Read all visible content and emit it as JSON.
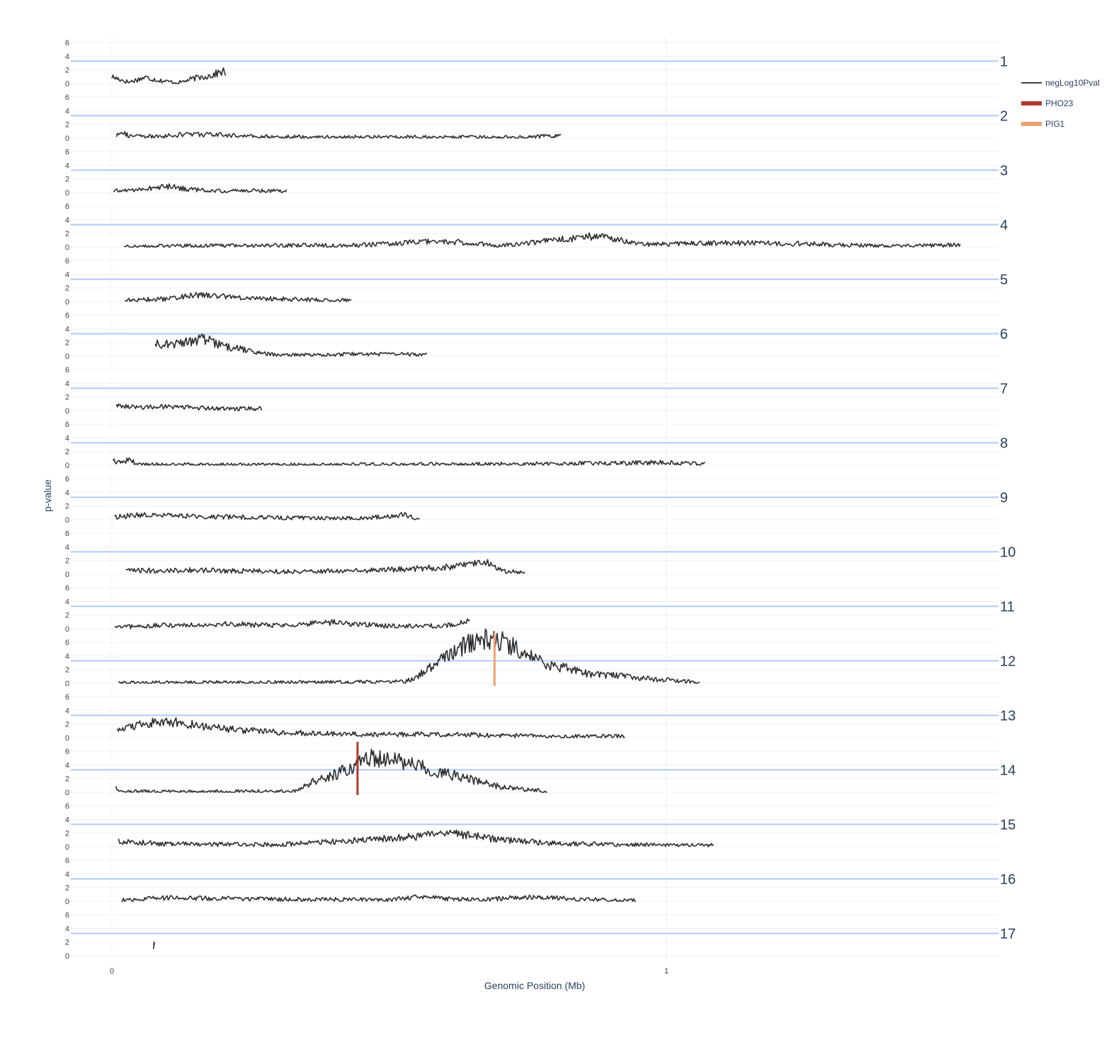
{
  "chart_data": {
    "type": "line",
    "xlabel": "Genomic Position (Mb)",
    "ylabel": "p-value",
    "xlim": [
      -0.075,
      1.6
    ],
    "xticks": [
      "0",
      "1"
    ],
    "ylim": [
      0,
      7
    ],
    "yticks": [
      "0",
      "2",
      "4",
      "6"
    ],
    "threshold": 3.3,
    "threshold_color": "#aecbfa",
    "line_color": "#2b2f33",
    "legend": [
      {
        "name": "negLog10Pval",
        "color": "#3a3f44"
      },
      {
        "name": "PHO23",
        "color": "#b03a2e"
      },
      {
        "name": "PIG1",
        "color": "#f0a070"
      }
    ],
    "legend_position": "top-right",
    "facets": [
      {
        "label": "1",
        "x_start": 0.0,
        "x_end": 0.205,
        "baseline": 0.5,
        "peak": 1.9,
        "points": [
          [
            0.0,
            1.0
          ],
          [
            0.03,
            0.2
          ],
          [
            0.06,
            0.9
          ],
          [
            0.09,
            0.4
          ],
          [
            0.12,
            0.1
          ],
          [
            0.15,
            0.8
          ],
          [
            0.18,
            1.2
          ],
          [
            0.2,
            1.8
          ],
          [
            0.205,
            1.6
          ]
        ]
      },
      {
        "label": "2",
        "x_start": 0.008,
        "x_end": 0.81,
        "baseline": 0.05,
        "peak": 1.3,
        "points": [
          [
            0.008,
            0.3
          ],
          [
            0.015,
            1.2
          ],
          [
            0.03,
            0.3
          ],
          [
            0.08,
            0.2
          ],
          [
            0.14,
            0.6
          ],
          [
            0.22,
            0.4
          ],
          [
            0.26,
            0.2
          ],
          [
            0.7,
            0.1
          ],
          [
            0.8,
            0.3
          ],
          [
            0.81,
            0.2
          ]
        ]
      },
      {
        "label": "3",
        "x_start": 0.003,
        "x_end": 0.315,
        "baseline": 0.1,
        "peak": 1.0,
        "points": [
          [
            0.003,
            0.2
          ],
          [
            0.05,
            0.5
          ],
          [
            0.1,
            0.9
          ],
          [
            0.15,
            0.4
          ],
          [
            0.2,
            0.2
          ],
          [
            0.25,
            0.3
          ],
          [
            0.315,
            0.3
          ]
        ]
      },
      {
        "label": "4",
        "x_start": 0.022,
        "x_end": 1.53,
        "baseline": 0.05,
        "peak": 1.8,
        "points": [
          [
            0.022,
            0.1
          ],
          [
            0.2,
            0.2
          ],
          [
            0.45,
            0.3
          ],
          [
            0.6,
            0.9
          ],
          [
            0.7,
            0.2
          ],
          [
            0.88,
            1.7
          ],
          [
            0.95,
            0.4
          ],
          [
            1.12,
            0.6
          ],
          [
            1.25,
            0.5
          ],
          [
            1.4,
            0.1
          ],
          [
            1.53,
            0.3
          ]
        ]
      },
      {
        "label": "5",
        "x_start": 0.023,
        "x_end": 0.432,
        "baseline": 0.1,
        "peak": 1.1,
        "points": [
          [
            0.023,
            0.2
          ],
          [
            0.1,
            0.4
          ],
          [
            0.15,
            1.0
          ],
          [
            0.25,
            0.5
          ],
          [
            0.35,
            0.3
          ],
          [
            0.432,
            0.2
          ]
        ]
      },
      {
        "label": "6",
        "x_start": 0.078,
        "x_end": 0.568,
        "baseline": 0.1,
        "peak": 2.8,
        "points": [
          [
            0.078,
            1.8
          ],
          [
            0.12,
            1.8
          ],
          [
            0.165,
            2.6
          ],
          [
            0.2,
            1.5
          ],
          [
            0.26,
            0.6
          ],
          [
            0.3,
            0.1
          ],
          [
            0.45,
            0.3
          ],
          [
            0.568,
            0.2
          ]
        ]
      },
      {
        "label": "7",
        "x_start": 0.008,
        "x_end": 0.27,
        "baseline": 0.3,
        "peak": 1.0,
        "points": [
          [
            0.008,
            0.9
          ],
          [
            0.05,
            0.5
          ],
          [
            0.1,
            0.6
          ],
          [
            0.2,
            0.3
          ],
          [
            0.27,
            0.3
          ]
        ]
      },
      {
        "label": "8",
        "x_start": 0.002,
        "x_end": 1.07,
        "baseline": 0.05,
        "peak": 0.8,
        "points": [
          [
            0.002,
            0.6
          ],
          [
            0.01,
            0.3
          ],
          [
            0.03,
            0.8
          ],
          [
            0.05,
            0.1
          ],
          [
            0.3,
            0.05
          ],
          [
            0.8,
            0.2
          ],
          [
            1.0,
            0.4
          ],
          [
            1.07,
            0.2
          ]
        ]
      },
      {
        "label": "9",
        "x_start": 0.005,
        "x_end": 0.555,
        "baseline": 0.1,
        "peak": 0.9,
        "points": [
          [
            0.005,
            0.4
          ],
          [
            0.05,
            0.7
          ],
          [
            0.15,
            0.5
          ],
          [
            0.3,
            0.3
          ],
          [
            0.45,
            0.2
          ],
          [
            0.53,
            0.7
          ],
          [
            0.555,
            0.1
          ]
        ]
      },
      {
        "label": "10",
        "x_start": 0.025,
        "x_end": 0.745,
        "baseline": 0.2,
        "peak": 1.9,
        "points": [
          [
            0.025,
            0.5
          ],
          [
            0.15,
            0.6
          ],
          [
            0.3,
            0.4
          ],
          [
            0.45,
            0.5
          ],
          [
            0.6,
            1.0
          ],
          [
            0.675,
            1.8
          ],
          [
            0.7,
            0.6
          ],
          [
            0.745,
            0.1
          ]
        ]
      },
      {
        "label": "11",
        "x_start": 0.005,
        "x_end": 0.645,
        "baseline": 0.2,
        "peak": 1.2,
        "points": [
          [
            0.005,
            0.2
          ],
          [
            0.1,
            0.5
          ],
          [
            0.2,
            0.7
          ],
          [
            0.3,
            0.5
          ],
          [
            0.4,
            0.9
          ],
          [
            0.5,
            0.4
          ],
          [
            0.6,
            0.4
          ],
          [
            0.645,
            1.1
          ]
        ]
      },
      {
        "label": "12",
        "x_start": 0.012,
        "x_end": 1.06,
        "baseline": 0.1,
        "peak": 6.7,
        "points": [
          [
            0.012,
            0.1
          ],
          [
            0.3,
            0.1
          ],
          [
            0.53,
            0.2
          ],
          [
            0.56,
            1.5
          ],
          [
            0.6,
            4.0
          ],
          [
            0.65,
            6.2
          ],
          [
            0.69,
            6.5
          ],
          [
            0.73,
            5.2
          ],
          [
            0.78,
            3.0
          ],
          [
            0.85,
            1.5
          ],
          [
            0.95,
            0.8
          ],
          [
            1.06,
            0.1
          ]
        ]
      },
      {
        "label": "13",
        "x_start": 0.01,
        "x_end": 0.925,
        "baseline": 0.2,
        "peak": 2.7,
        "points": [
          [
            0.01,
            1.0
          ],
          [
            0.06,
            2.2
          ],
          [
            0.12,
            2.3
          ],
          [
            0.2,
            1.3
          ],
          [
            0.3,
            0.8
          ],
          [
            0.45,
            0.5
          ],
          [
            0.6,
            0.5
          ],
          [
            0.8,
            0.2
          ],
          [
            0.925,
            0.2
          ]
        ]
      },
      {
        "label": "14",
        "x_start": 0.007,
        "x_end": 0.785,
        "baseline": 0.1,
        "peak": 5.4,
        "points": [
          [
            0.007,
            0.6
          ],
          [
            0.015,
            0.1
          ],
          [
            0.33,
            0.1
          ],
          [
            0.36,
            1.5
          ],
          [
            0.4,
            2.5
          ],
          [
            0.44,
            4.0
          ],
          [
            0.47,
            5.2
          ],
          [
            0.52,
            4.5
          ],
          [
            0.58,
            3.2
          ],
          [
            0.64,
            2.0
          ],
          [
            0.7,
            0.8
          ],
          [
            0.785,
            0.1
          ]
        ]
      },
      {
        "label": "15",
        "x_start": 0.012,
        "x_end": 1.085,
        "baseline": 0.1,
        "peak": 2.7,
        "points": [
          [
            0.012,
            0.8
          ],
          [
            0.1,
            0.4
          ],
          [
            0.3,
            0.3
          ],
          [
            0.45,
            1.0
          ],
          [
            0.56,
            1.5
          ],
          [
            0.6,
            2.2
          ],
          [
            0.7,
            1.0
          ],
          [
            0.8,
            0.5
          ],
          [
            1.0,
            0.2
          ],
          [
            1.085,
            0.2
          ]
        ]
      },
      {
        "label": "16",
        "x_start": 0.017,
        "x_end": 0.945,
        "baseline": 0.1,
        "peak": 1.6,
        "points": [
          [
            0.017,
            0.2
          ],
          [
            0.1,
            0.5
          ],
          [
            0.3,
            0.3
          ],
          [
            0.5,
            0.2
          ],
          [
            0.55,
            0.6
          ],
          [
            0.65,
            0.2
          ],
          [
            0.75,
            0.6
          ],
          [
            0.85,
            0.3
          ],
          [
            0.945,
            0.1
          ]
        ]
      },
      {
        "label": "17",
        "x_start": 0.075,
        "x_end": 0.077,
        "baseline": 1.5,
        "peak": 1.5,
        "points": [
          [
            0.075,
            1.5
          ],
          [
            0.077,
            1.5
          ]
        ]
      }
    ],
    "gene_markers": [
      {
        "name": "PHO23",
        "facet": "14",
        "x": 0.443,
        "y_range": [
          0.0,
          7.0
        ]
      },
      {
        "name": "PIG1",
        "facet": "12",
        "x": 0.69,
        "y_range": [
          0.0,
          7.0
        ]
      }
    ]
  }
}
